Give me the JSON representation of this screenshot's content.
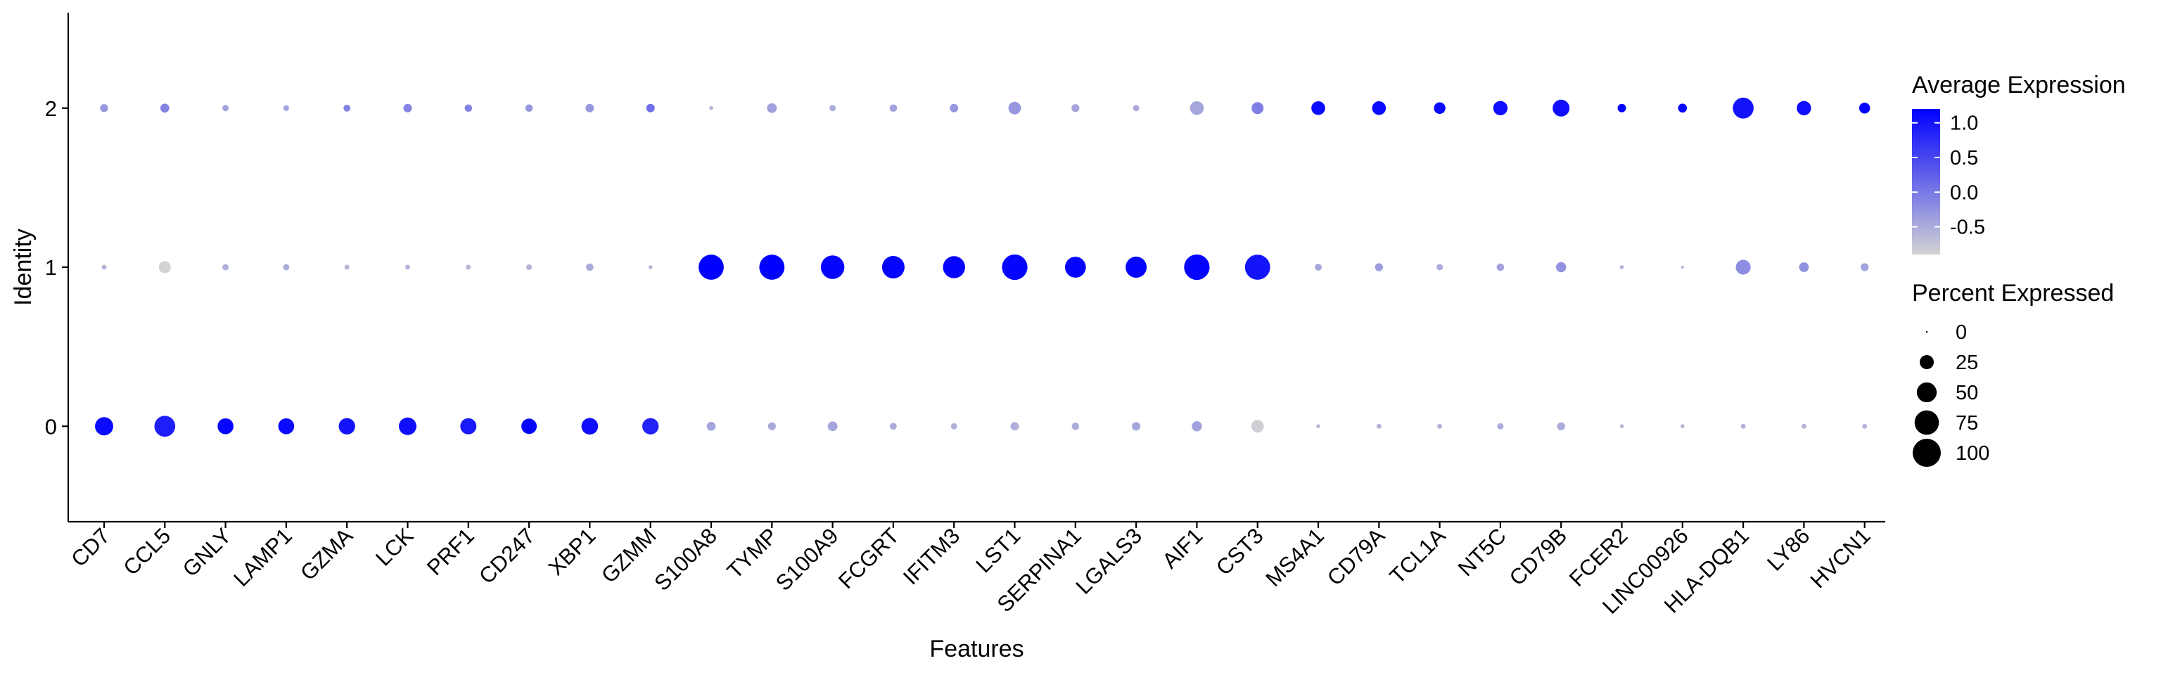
{
  "chart_data": {
    "type": "scatter",
    "subtype": "dot-plot",
    "title": "",
    "xlabel": "Features",
    "ylabel": "Identity",
    "features": [
      "CD7",
      "CCL5",
      "GNLY",
      "LAMP1",
      "GZMA",
      "LCK",
      "PRF1",
      "CD247",
      "XBP1",
      "GZMM",
      "S100A8",
      "TYMP",
      "S100A9",
      "FCGRT",
      "IFITM3",
      "LST1",
      "SERPINA1",
      "LGALS3",
      "AIF1",
      "CST3",
      "MS4A1",
      "CD79A",
      "TCL1A",
      "NT5C",
      "CD79B",
      "FCER2",
      "LINC00926",
      "HLA-DQB1",
      "LY86",
      "HVCN1"
    ],
    "identities": [
      "0",
      "1",
      "2"
    ],
    "ylim": [
      -0.6,
      2.6
    ],
    "grid": false,
    "color_scale": {
      "title": "Average Expression",
      "low": "#d3d3d3",
      "high": "#0000ff",
      "min": -0.9,
      "max": 1.2,
      "ticks": [
        1.0,
        0.5,
        0.0,
        -0.5
      ],
      "tick_labels": [
        "1.0",
        "0.5",
        "0.0",
        "-0.5"
      ]
    },
    "size_scale": {
      "title": "Percent Expressed",
      "breaks": [
        0,
        25,
        50,
        75,
        100
      ],
      "labels": [
        "0",
        "25",
        "50",
        "75",
        "100"
      ]
    },
    "legend_position": "right",
    "series": [
      {
        "identity": "0",
        "avg_exp": [
          1.1,
          0.9,
          1.15,
          1.1,
          1.0,
          1.05,
          0.95,
          1.15,
          1.05,
          0.85,
          -0.45,
          -0.5,
          -0.45,
          -0.5,
          -0.55,
          -0.55,
          -0.5,
          -0.45,
          -0.4,
          -0.85,
          -0.6,
          -0.6,
          -0.6,
          -0.5,
          -0.5,
          -0.6,
          -0.6,
          -0.6,
          -0.6,
          -0.6
        ],
        "pct_exp": [
          42,
          55,
          32,
          32,
          34,
          39,
          33,
          30,
          35,
          34,
          10,
          8,
          12,
          6,
          5,
          9,
          7,
          9,
          13,
          20,
          2,
          3,
          3,
          5,
          8,
          2,
          2,
          3,
          3,
          3
        ]
      },
      {
        "identity": "1",
        "avg_exp": [
          -0.6,
          -0.9,
          -0.55,
          -0.5,
          -0.6,
          -0.6,
          -0.6,
          -0.6,
          -0.5,
          -0.6,
          1.2,
          1.2,
          1.15,
          1.15,
          1.15,
          1.15,
          1.15,
          1.15,
          1.15,
          1.0,
          -0.45,
          -0.35,
          -0.5,
          -0.4,
          -0.25,
          -0.6,
          -0.6,
          -0.2,
          -0.25,
          -0.4
        ],
        "pct_exp": [
          3,
          18,
          5,
          5,
          3,
          3,
          3,
          4,
          7,
          2,
          80,
          80,
          70,
          64,
          62,
          82,
          55,
          56,
          82,
          80,
          6,
          8,
          5,
          7,
          13,
          2,
          1,
          28,
          12,
          8
        ]
      },
      {
        "identity": "2",
        "avg_exp": [
          -0.3,
          -0.1,
          -0.4,
          -0.4,
          -0.1,
          -0.1,
          -0.1,
          -0.3,
          -0.3,
          0.1,
          -0.6,
          -0.4,
          -0.5,
          -0.4,
          -0.3,
          -0.3,
          -0.45,
          -0.5,
          -0.45,
          -0.05,
          1.1,
          1.1,
          1.1,
          1.05,
          1.05,
          1.2,
          1.15,
          1.0,
          1.05,
          1.15
        ],
        "pct_exp": [
          8,
          10,
          5,
          4,
          6,
          9,
          7,
          7,
          9,
          9,
          2,
          12,
          5,
          7,
          9,
          20,
          8,
          5,
          24,
          18,
          24,
          24,
          17,
          26,
          36,
          9,
          10,
          55,
          26,
          15
        ]
      }
    ]
  }
}
